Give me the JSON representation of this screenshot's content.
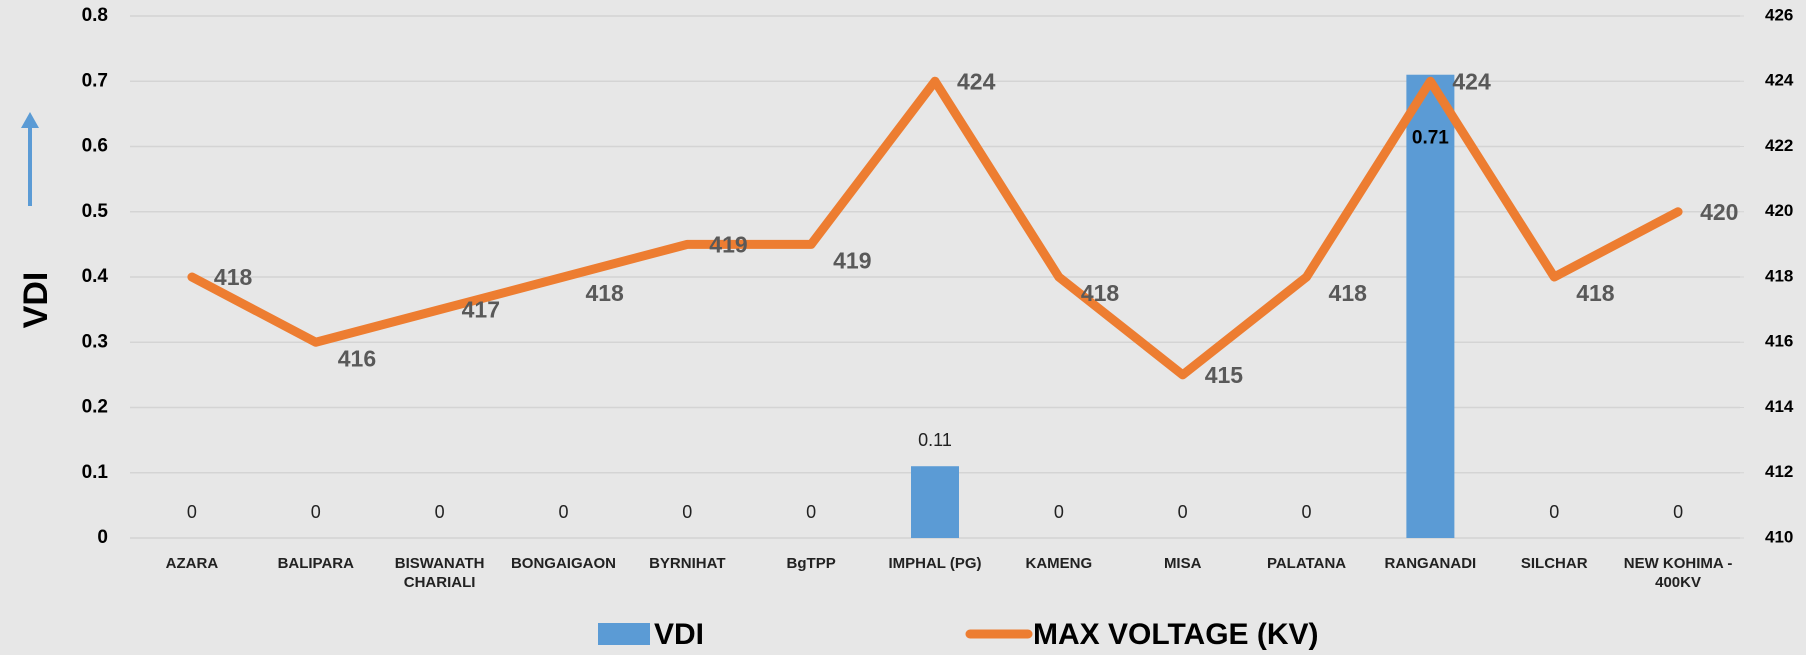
{
  "chart_data": {
    "type": "bar",
    "categories": [
      "AZARA",
      "BALIPARA",
      "BISWANATH CHARIALI",
      "BONGAIGAON",
      "BYRNIHAT",
      "BgTPP",
      "IMPHAL (PG)",
      "KAMENG",
      "MISA",
      "PALATANA",
      "RANGANADI",
      "SILCHAR",
      "NEW KOHIMA - 400KV"
    ],
    "series": [
      {
        "name": "VDI",
        "type": "bar",
        "color": "#5b9bd5",
        "values": [
          0,
          0,
          0,
          0,
          0,
          0,
          0.11,
          0,
          0,
          0,
          0.71,
          0,
          0
        ]
      },
      {
        "name": "MAX VOLTAGE (KV)",
        "type": "line",
        "axis": "y2",
        "color": "#ed7d31",
        "values": [
          418,
          416,
          417,
          418,
          419,
          419,
          424,
          418,
          415,
          418,
          424,
          418,
          420
        ]
      }
    ],
    "ylabel": "VDI",
    "ylim": [
      0,
      0.8
    ],
    "yticks": [
      0,
      0.1,
      0.2,
      0.3,
      0.4,
      0.5,
      0.6,
      0.7,
      0.8
    ],
    "y2lim": [
      410,
      426
    ],
    "y2ticks": [
      410,
      412,
      414,
      416,
      418,
      420,
      422,
      424,
      426
    ],
    "grid": true,
    "legend": "bottom"
  }
}
